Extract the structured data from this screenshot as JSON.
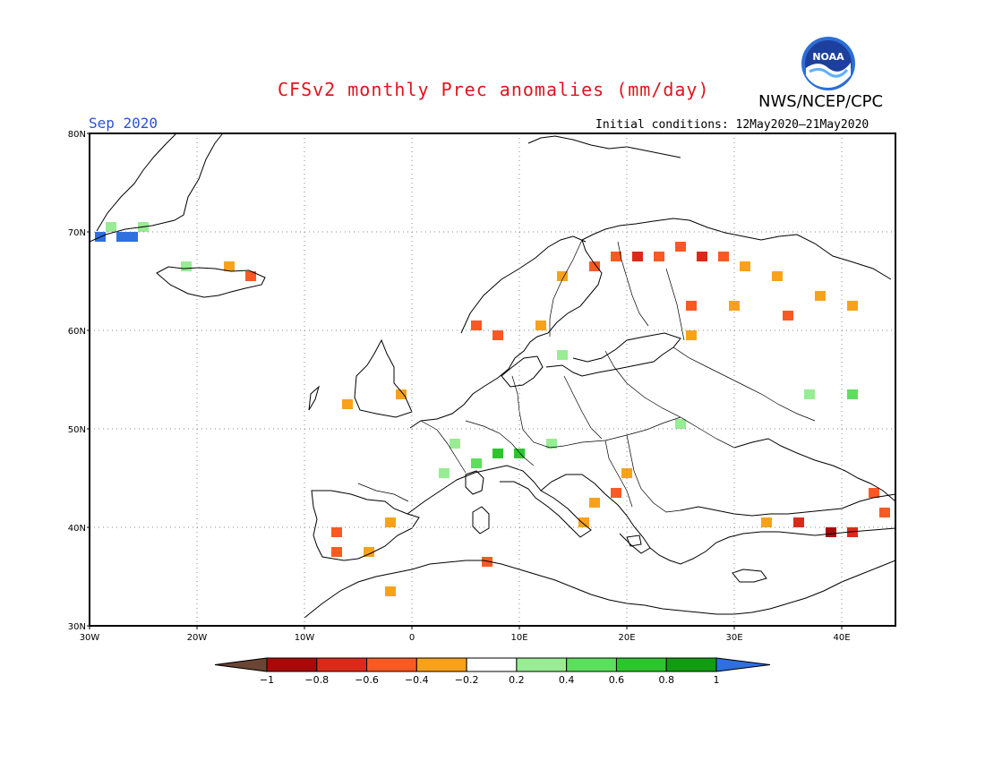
{
  "header": {
    "title": "CFSv2 monthly Prec anomalies (mm/day)",
    "org": "NWS/NCEP/CPC",
    "month": "Sep 2020",
    "initial_conditions": "Initial conditions: 12May2020–21May2020",
    "logo_text": "NOAA"
  },
  "map": {
    "lon_labels": [
      "30W",
      "20W",
      "10W",
      "0",
      "10E",
      "20E",
      "30E",
      "40E"
    ],
    "lat_labels": [
      "80N",
      "70N",
      "60N",
      "50N",
      "40N",
      "30N"
    ],
    "lon_range": [
      -30,
      45
    ],
    "lat_range": [
      30,
      80
    ],
    "gridlines": "dotted, every 10 degrees",
    "anomaly_cells": [
      {
        "lon": -29,
        "lat": 69.5,
        "value": 1.0
      },
      {
        "lon": -27,
        "lat": 69.5,
        "value": 1.1
      },
      {
        "lon": -26,
        "lat": 69.5,
        "value": 1.1
      },
      {
        "lon": -28,
        "lat": 70.5,
        "value": 0.3
      },
      {
        "lon": -25,
        "lat": 70.5,
        "value": 0.3
      },
      {
        "lon": -21,
        "lat": 66.5,
        "value": 0.3
      },
      {
        "lon": -17,
        "lat": 66.5,
        "value": -0.3
      },
      {
        "lon": -15,
        "lat": 65.5,
        "value": -0.5
      },
      {
        "lon": 14,
        "lat": 65.5,
        "value": -0.3
      },
      {
        "lon": 17,
        "lat": 66.5,
        "value": -0.5
      },
      {
        "lon": 19,
        "lat": 67.5,
        "value": -0.6
      },
      {
        "lon": 21,
        "lat": 67.5,
        "value": -0.7
      },
      {
        "lon": 23,
        "lat": 67.5,
        "value": -0.6
      },
      {
        "lon": 25,
        "lat": 68.5,
        "value": -0.5
      },
      {
        "lon": 27,
        "lat": 67.5,
        "value": -0.7
      },
      {
        "lon": 29,
        "lat": 67.5,
        "value": -0.6
      },
      {
        "lon": 31,
        "lat": 66.5,
        "value": -0.4
      },
      {
        "lon": 34,
        "lat": 65.5,
        "value": -0.3
      },
      {
        "lon": 38,
        "lat": 63.5,
        "value": -0.3
      },
      {
        "lon": 41,
        "lat": 62.5,
        "value": -0.3
      },
      {
        "lon": 26,
        "lat": 62.5,
        "value": -0.5
      },
      {
        "lon": 30,
        "lat": 62.5,
        "value": -0.4
      },
      {
        "lon": 35,
        "lat": 61.5,
        "value": -0.5
      },
      {
        "lon": 12,
        "lat": 60.5,
        "value": -0.3
      },
      {
        "lon": 8,
        "lat": 59.5,
        "value": -0.5
      },
      {
        "lon": 6,
        "lat": 60.5,
        "value": -0.6
      },
      {
        "lon": 26,
        "lat": 59.5,
        "value": -0.3
      },
      {
        "lon": -1,
        "lat": 53.5,
        "value": -0.3
      },
      {
        "lon": -6,
        "lat": 52.5,
        "value": -0.3
      },
      {
        "lon": 14,
        "lat": 57.5,
        "value": 0.3
      },
      {
        "lon": 37,
        "lat": 53.5,
        "value": 0.3
      },
      {
        "lon": 41,
        "lat": 53.5,
        "value": 0.4
      },
      {
        "lon": 8,
        "lat": 47.5,
        "value": 0.7
      },
      {
        "lon": 10,
        "lat": 47.5,
        "value": 0.6
      },
      {
        "lon": 6,
        "lat": 46.5,
        "value": 0.4
      },
      {
        "lon": 3,
        "lat": 45.5,
        "value": 0.3
      },
      {
        "lon": 4,
        "lat": 48.5,
        "value": 0.3
      },
      {
        "lon": 13,
        "lat": 48.5,
        "value": 0.3
      },
      {
        "lon": 25,
        "lat": 50.5,
        "value": 0.3
      },
      {
        "lon": 19,
        "lat": 43.5,
        "value": -0.5
      },
      {
        "lon": 17,
        "lat": 42.5,
        "value": -0.4
      },
      {
        "lon": 20,
        "lat": 45.5,
        "value": -0.3
      },
      {
        "lon": -7,
        "lat": 39.5,
        "value": -0.5
      },
      {
        "lon": -7,
        "lat": 37.5,
        "value": -0.5
      },
      {
        "lon": -4,
        "lat": 37.5,
        "value": -0.3
      },
      {
        "lon": -2,
        "lat": 40.5,
        "value": -0.3
      },
      {
        "lon": 7,
        "lat": 36.5,
        "value": -0.5
      },
      {
        "lon": -2,
        "lat": 33.5,
        "value": -0.3
      },
      {
        "lon": 33,
        "lat": 40.5,
        "value": -0.4
      },
      {
        "lon": 36,
        "lat": 40.5,
        "value": -0.7
      },
      {
        "lon": 39,
        "lat": 39.5,
        "value": -0.9
      },
      {
        "lon": 41,
        "lat": 39.5,
        "value": -0.7
      },
      {
        "lon": 43,
        "lat": 43.5,
        "value": -0.5
      },
      {
        "lon": 44,
        "lat": 41.5,
        "value": -0.6
      },
      {
        "lon": 16,
        "lat": 40.5,
        "value": -0.3
      }
    ]
  },
  "colorbar": {
    "tick_labels": [
      "-1",
      "-0.8",
      "-0.6",
      "-0.4",
      "-0.2",
      "0.2",
      "0.4",
      "0.6",
      "0.8",
      "1"
    ],
    "colors": {
      "below": "#6b4534",
      "bins": [
        "#a80a0a",
        "#dc2a1a",
        "#f85a24",
        "#f8a21c",
        "#ffffff",
        "#98ec94",
        "#5ce05c",
        "#2cc62c",
        "#119c11"
      ],
      "above": "#2f6fe0"
    }
  }
}
